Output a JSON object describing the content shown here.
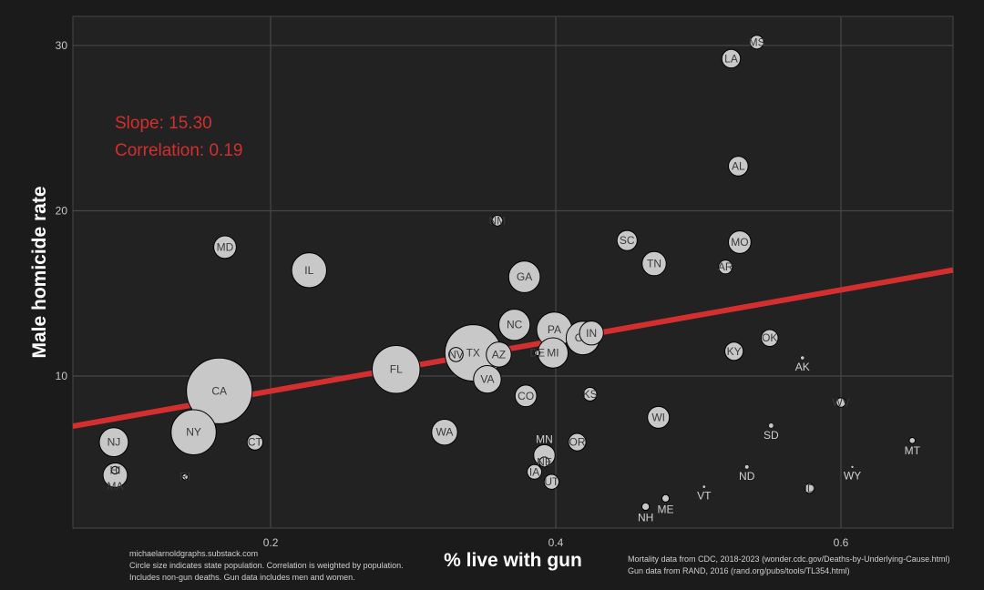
{
  "chart_data": {
    "type": "scatter",
    "xlabel": "% live with gun",
    "ylabel": "Male homicide rate",
    "xlim": [
      0.0613,
      0.6786
    ],
    "ylim": [
      0.8,
      31.76
    ],
    "x_ticks": [
      0.2,
      0.4,
      0.6
    ],
    "x_tick_labels": [
      "0.2",
      "0.4",
      "0.6"
    ],
    "y_ticks": [
      10,
      20,
      30
    ],
    "y_tick_labels": [
      "10",
      "20",
      "30"
    ],
    "grid": true,
    "annotations": {
      "slope": "Slope: 15.30",
      "correlation": "Correlation: 0.19"
    },
    "regression": {
      "slope": 15.3,
      "intercept": 6.03
    },
    "size_variable": "state population (millions)",
    "colors": {
      "background": "#1b1b1b",
      "panel": "#222222",
      "grid": "#474747",
      "point_fill": "#c8c8c8",
      "point_stroke": "#000000",
      "regression_line": "#d32f2f",
      "annotation": "#d32f2f"
    },
    "points": [
      {
        "state": "CA",
        "x": 0.164,
        "y": 9.1,
        "pop": 39.0
      },
      {
        "state": "TX",
        "x": 0.342,
        "y": 11.4,
        "pop": 29.5
      },
      {
        "state": "FL",
        "x": 0.288,
        "y": 10.4,
        "pop": 22.0
      },
      {
        "state": "NY",
        "x": 0.146,
        "y": 6.6,
        "pop": 19.8
      },
      {
        "state": "PA",
        "x": 0.399,
        "y": 12.8,
        "pop": 13.0
      },
      {
        "state": "IL",
        "x": 0.227,
        "y": 16.4,
        "pop": 12.7
      },
      {
        "state": "OH",
        "x": 0.419,
        "y": 12.3,
        "pop": 11.8
      },
      {
        "state": "GA",
        "x": 0.378,
        "y": 16.0,
        "pop": 10.7
      },
      {
        "state": "NC",
        "x": 0.371,
        "y": 13.1,
        "pop": 10.5
      },
      {
        "state": "MI",
        "x": 0.398,
        "y": 11.4,
        "pop": 10.0
      },
      {
        "state": "NJ",
        "x": 0.09,
        "y": 6.0,
        "pop": 9.3
      },
      {
        "state": "VA",
        "x": 0.352,
        "y": 9.8,
        "pop": 8.6
      },
      {
        "state": "WA",
        "x": 0.322,
        "y": 6.6,
        "pop": 7.7
      },
      {
        "state": "AZ",
        "x": 0.36,
        "y": 11.3,
        "pop": 7.3
      },
      {
        "state": "MA",
        "x": 0.091,
        "y": 4.0,
        "pop": 7.0
      },
      {
        "state": "TN",
        "x": 0.469,
        "y": 16.8,
        "pop": 6.9
      },
      {
        "state": "IN",
        "x": 0.425,
        "y": 12.6,
        "pop": 6.8
      },
      {
        "state": "MO",
        "x": 0.529,
        "y": 18.1,
        "pop": 6.2
      },
      {
        "state": "MD",
        "x": 0.168,
        "y": 17.8,
        "pop": 6.2
      },
      {
        "state": "WI",
        "x": 0.472,
        "y": 7.5,
        "pop": 5.9
      },
      {
        "state": "CO",
        "x": 0.379,
        "y": 8.8,
        "pop": 5.8
      },
      {
        "state": "MN",
        "x": 0.392,
        "y": 5.2,
        "pop": 5.7
      },
      {
        "state": "SC",
        "x": 0.45,
        "y": 18.2,
        "pop": 5.2
      },
      {
        "state": "AL",
        "x": 0.528,
        "y": 22.7,
        "pop": 5.0
      },
      {
        "state": "LA",
        "x": 0.523,
        "y": 29.2,
        "pop": 4.6
      },
      {
        "state": "KY",
        "x": 0.525,
        "y": 11.5,
        "pop": 4.5
      },
      {
        "state": "OR",
        "x": 0.415,
        "y": 6.0,
        "pop": 4.2
      },
      {
        "state": "OK",
        "x": 0.55,
        "y": 12.3,
        "pop": 4.0
      },
      {
        "state": "CT",
        "x": 0.189,
        "y": 6.0,
        "pop": 3.6
      },
      {
        "state": "UT",
        "x": 0.397,
        "y": 3.6,
        "pop": 3.3
      },
      {
        "state": "IA",
        "x": 0.385,
        "y": 4.2,
        "pop": 3.2
      },
      {
        "state": "NV",
        "x": 0.33,
        "y": 11.3,
        "pop": 3.1
      },
      {
        "state": "AR",
        "x": 0.519,
        "y": 16.6,
        "pop": 3.0
      },
      {
        "state": "MS",
        "x": 0.541,
        "y": 30.2,
        "pop": 2.95
      },
      {
        "state": "KS",
        "x": 0.424,
        "y": 8.9,
        "pop": 2.9
      },
      {
        "state": "NM",
        "x": 0.359,
        "y": 19.4,
        "pop": 2.1
      },
      {
        "state": "NE",
        "x": 0.392,
        "y": 4.8,
        "pop": 1.96
      },
      {
        "state": "ID",
        "x": 0.578,
        "y": 3.2,
        "pop": 1.9
      },
      {
        "state": "WV",
        "x": 0.6,
        "y": 8.4,
        "pop": 1.8
      },
      {
        "state": "HI",
        "x": 0.091,
        "y": 4.3,
        "pop": 1.4
      },
      {
        "state": "NH",
        "x": 0.463,
        "y": 2.1,
        "pop": 1.4
      },
      {
        "state": "ME",
        "x": 0.477,
        "y": 2.6,
        "pop": 1.36
      },
      {
        "state": "RI",
        "x": 0.14,
        "y": 3.9,
        "pop": 1.1
      },
      {
        "state": "MT",
        "x": 0.65,
        "y": 6.1,
        "pop": 1.1
      },
      {
        "state": "DE",
        "x": 0.387,
        "y": 11.4,
        "pop": 1.0
      },
      {
        "state": "SD",
        "x": 0.551,
        "y": 7.0,
        "pop": 0.9
      },
      {
        "state": "ND",
        "x": 0.534,
        "y": 4.5,
        "pop": 0.78
      },
      {
        "state": "AK",
        "x": 0.573,
        "y": 11.1,
        "pop": 0.73
      },
      {
        "state": "VT",
        "x": 0.504,
        "y": 3.3,
        "pop": 0.64
      },
      {
        "state": "WY",
        "x": 0.608,
        "y": 4.5,
        "pop": 0.58
      }
    ],
    "footnotes": {
      "left": [
        "michaelarnoldgraphs.substack.com",
        "Circle size indicates state population. Correlation is weighted by population.",
        "Includes non-gun deaths. Gun data includes men and women."
      ],
      "right": [
        "Mortality data from CDC, 2018-2023 (wonder.cdc.gov/Deaths-by-Underlying-Cause.html)",
        "Gun data from RAND, 2016 (rand.org/pubs/tools/TL354.html)"
      ]
    }
  }
}
